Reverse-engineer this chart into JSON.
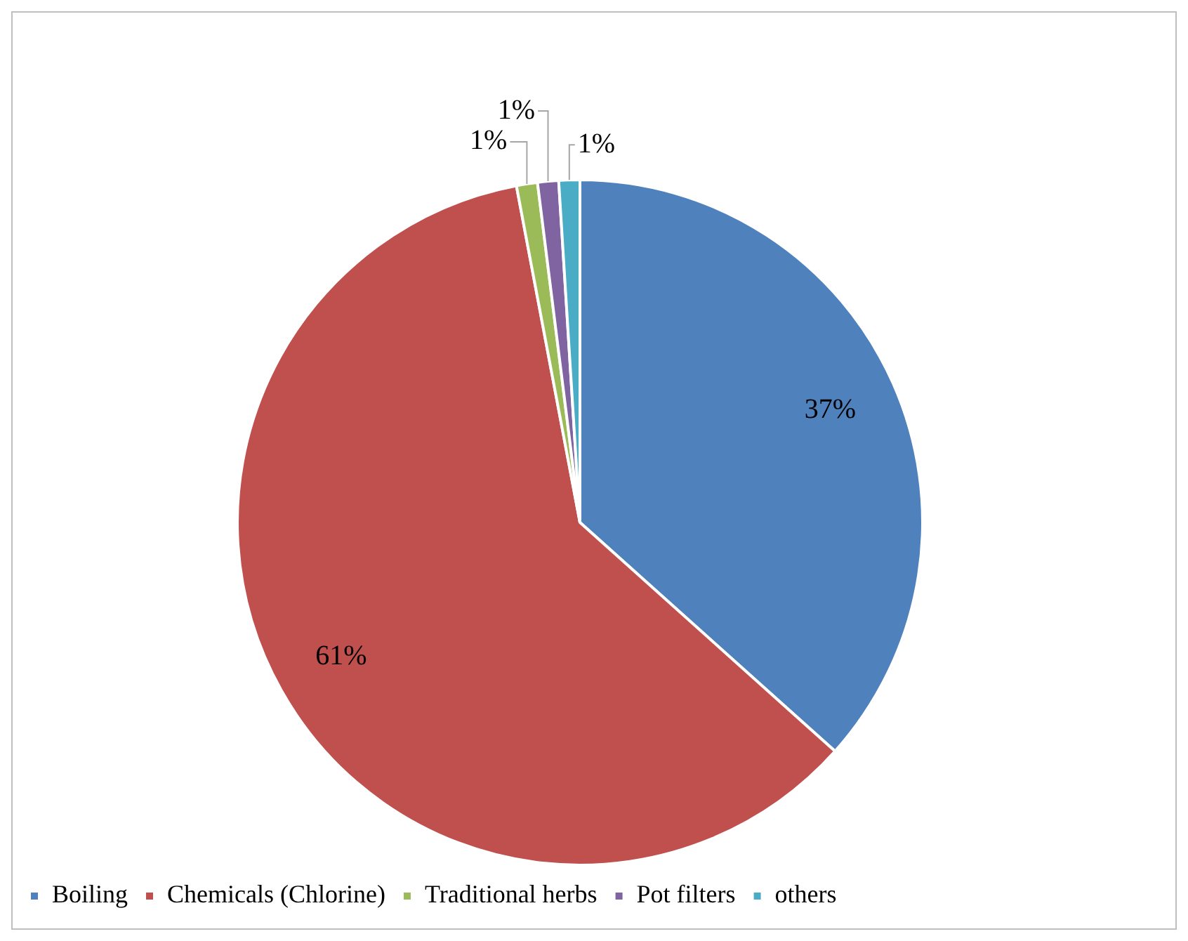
{
  "chart_data": {
    "type": "pie",
    "categories": [
      "Boiling",
      "Chemicals (Chlorine)",
      "Traditional herbs",
      "Pot filters",
      "others"
    ],
    "values": [
      37,
      61,
      1,
      1,
      1
    ],
    "value_labels": [
      "37%",
      "61%",
      "1%",
      "1%",
      "1%"
    ],
    "colors": [
      "#4f81bd",
      "#c0504d",
      "#9bbb59",
      "#8064a2",
      "#4bacc6"
    ],
    "legend": "bottom"
  }
}
